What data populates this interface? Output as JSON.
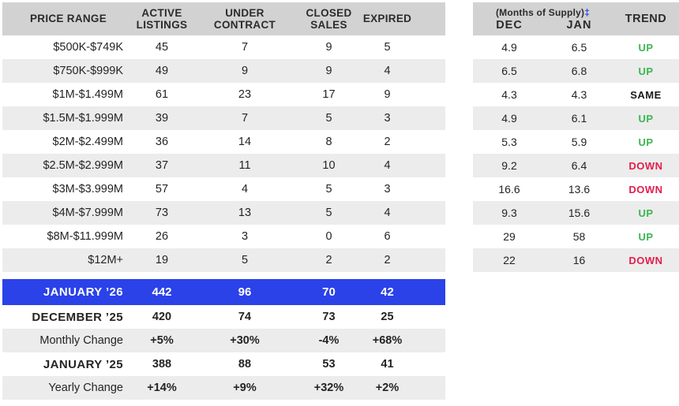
{
  "colors": {
    "header_gray": "#d2d2d2",
    "alt_row_gray": "#ececec",
    "highlight_blue": "#2a42e8",
    "trend_up_green": "#3bb551",
    "trend_down_red": "#e41c4c"
  },
  "chart_data": [
    {
      "type": "table",
      "columns": [
        "PRICE RANGE",
        "ACTIVE LISTINGS",
        "UNDER CONTRACT",
        "CLOSED SALES",
        "EXPIRED"
      ],
      "rows": [
        {
          "price_range": "$500K-$749K",
          "active": "45",
          "under_contract": "7",
          "closed": "9",
          "expired": "5"
        },
        {
          "price_range": "$750K-$999K",
          "active": "49",
          "under_contract": "9",
          "closed": "9",
          "expired": "4"
        },
        {
          "price_range": "$1M-$1.499M",
          "active": "61",
          "under_contract": "23",
          "closed": "17",
          "expired": "9"
        },
        {
          "price_range": "$1.5M-$1.999M",
          "active": "39",
          "under_contract": "7",
          "closed": "5",
          "expired": "3"
        },
        {
          "price_range": "$2M-$2.499M",
          "active": "36",
          "under_contract": "14",
          "closed": "8",
          "expired": "2"
        },
        {
          "price_range": "$2.5M-$2.999M",
          "active": "37",
          "under_contract": "11",
          "closed": "10",
          "expired": "4"
        },
        {
          "price_range": "$3M-$3.999M",
          "active": "57",
          "under_contract": "4",
          "closed": "5",
          "expired": "3"
        },
        {
          "price_range": "$4M-$7.999M",
          "active": "73",
          "under_contract": "13",
          "closed": "5",
          "expired": "4"
        },
        {
          "price_range": "$8M-$11.999M",
          "active": "26",
          "under_contract": "3",
          "closed": "0",
          "expired": "6"
        },
        {
          "price_range": "$12M+",
          "active": "19",
          "under_contract": "5",
          "closed": "2",
          "expired": "2"
        }
      ],
      "summary_rows": [
        {
          "label": "JANUARY ’26",
          "active": "442",
          "under_contract": "96",
          "closed": "70",
          "expired": "42",
          "variant": "highlight"
        },
        {
          "label": "DECEMBER ’25",
          "active": "420",
          "under_contract": "74",
          "closed": "73",
          "expired": "25",
          "variant": "bold"
        },
        {
          "label": "Monthly Change",
          "active": "+5%",
          "under_contract": "+30%",
          "closed": "-4%",
          "expired": "+68%",
          "variant": "change"
        },
        {
          "label": "JANUARY ’25",
          "active": "388",
          "under_contract": "88",
          "closed": "53",
          "expired": "41",
          "variant": "bold"
        },
        {
          "label": "Yearly Change",
          "active": "+14%",
          "under_contract": "+9%",
          "closed": "+32%",
          "expired": "+2%",
          "variant": "change"
        }
      ]
    },
    {
      "type": "table",
      "title": "(Months of Supply)",
      "footnote_marker": "‡",
      "columns": [
        "DEC",
        "JAN",
        "TREND"
      ],
      "rows": [
        {
          "dec": "4.9",
          "jan": "6.5",
          "trend": "UP"
        },
        {
          "dec": "6.5",
          "jan": "6.8",
          "trend": "UP"
        },
        {
          "dec": "4.3",
          "jan": "4.3",
          "trend": "SAME"
        },
        {
          "dec": "4.9",
          "jan": "6.1",
          "trend": "UP"
        },
        {
          "dec": "5.3",
          "jan": "5.9",
          "trend": "UP"
        },
        {
          "dec": "9.2",
          "jan": "6.4",
          "trend": "DOWN"
        },
        {
          "dec": "16.6",
          "jan": "13.6",
          "trend": "DOWN"
        },
        {
          "dec": "9.3",
          "jan": "15.6",
          "trend": "UP"
        },
        {
          "dec": "29",
          "jan": "58",
          "trend": "UP"
        },
        {
          "dec": "22",
          "jan": "16",
          "trend": "DOWN"
        }
      ]
    }
  ]
}
